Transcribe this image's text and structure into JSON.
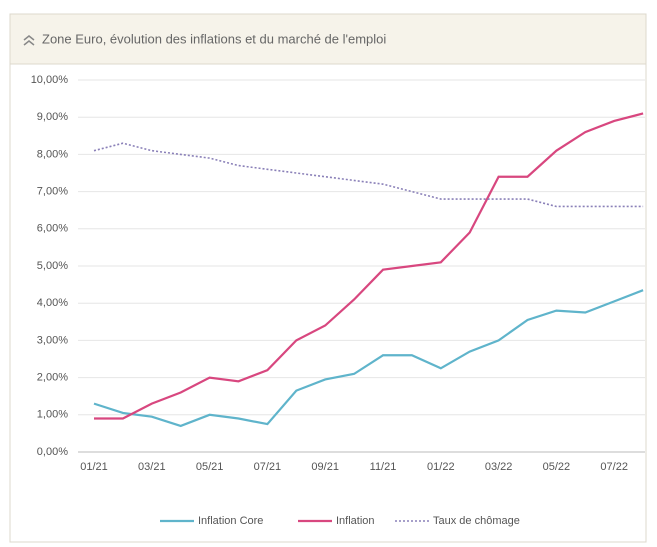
{
  "chart_data": {
    "type": "line",
    "title": "Zone Euro, évolution des inflations et du marché de l'emploi",
    "categories": [
      "01/21",
      null,
      "03/21",
      null,
      "05/21",
      null,
      "07/21",
      null,
      "09/21",
      null,
      "11/21",
      null,
      "01/22",
      null,
      "03/22",
      null,
      "05/22",
      null,
      "07/22",
      null
    ],
    "series": [
      {
        "name": "Inflation Core",
        "color": "#5fb4cb",
        "line_style": "solid",
        "values": [
          1.3,
          1.05,
          0.95,
          0.7,
          1.0,
          0.9,
          0.75,
          1.65,
          1.95,
          2.1,
          2.6,
          2.6,
          2.25,
          2.7,
          3.0,
          3.55,
          3.8,
          3.75,
          4.05,
          4.35
        ]
      },
      {
        "name": "Inflation",
        "color": "#d8477f",
        "line_style": "solid",
        "values": [
          0.9,
          0.9,
          1.3,
          1.6,
          2.0,
          1.9,
          2.2,
          3.0,
          3.4,
          4.1,
          4.9,
          5.0,
          5.1,
          5.9,
          7.4,
          7.4,
          8.1,
          8.6,
          8.9,
          9.1
        ]
      },
      {
        "name": "Taux de chômage",
        "color": "#8a80b8",
        "line_style": "dotted",
        "values": [
          8.1,
          8.3,
          8.1,
          8.0,
          7.9,
          7.7,
          7.6,
          7.5,
          7.4,
          7.3,
          7.2,
          7.0,
          6.8,
          6.8,
          6.8,
          6.8,
          6.6,
          6.6,
          6.6,
          6.6
        ]
      }
    ],
    "ylim": [
      0,
      10
    ],
    "yticks": [
      {
        "value": 0,
        "label": "0,00%"
      },
      {
        "value": 1,
        "label": "1,00%"
      },
      {
        "value": 2,
        "label": "2,00%"
      },
      {
        "value": 3,
        "label": "3,00%"
      },
      {
        "value": 4,
        "label": "4,00%"
      },
      {
        "value": 5,
        "label": "5,00%"
      },
      {
        "value": 6,
        "label": "6,00%"
      },
      {
        "value": 7,
        "label": "7,00%"
      },
      {
        "value": 8,
        "label": "8,00%"
      },
      {
        "value": 9,
        "label": "9,00%"
      },
      {
        "value": 10,
        "label": "10,00%"
      }
    ],
    "grid": true,
    "legend": "bottom"
  }
}
